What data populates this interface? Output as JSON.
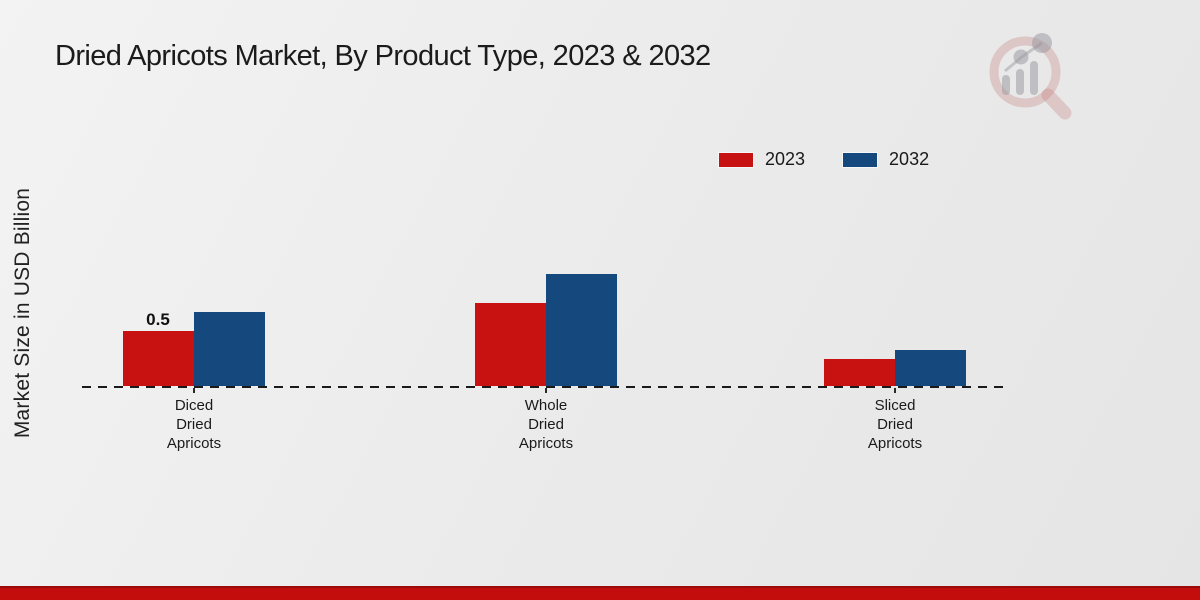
{
  "title": "Dried Apricots Market, By Product Type, 2023 & 2032",
  "chart_data": {
    "type": "bar",
    "title": "Dried Apricots Market, By Product Type, 2023 & 2032",
    "categories": [
      "Diced Dried Apricots",
      "Whole Dried Apricots",
      "Sliced Dried Apricots"
    ],
    "category_labels": [
      "Diced\nDried\nApricots",
      "Whole\nDried\nApricots",
      "Sliced\nDried\nApricots"
    ],
    "series": [
      {
        "name": "2023",
        "color": "#c81111",
        "values": [
          0.5,
          0.75,
          0.24
        ]
      },
      {
        "name": "2032",
        "color": "#15487d",
        "values": [
          0.67,
          1.01,
          0.33
        ]
      }
    ],
    "xlabel": "",
    "ylabel": "Market Size in USD Billion",
    "ylim": [
      0,
      1.2
    ],
    "grid": false,
    "baseline_style": "dashed",
    "legend_position": "top-right",
    "annotations": [
      {
        "category": "Diced Dried Apricots",
        "series": "2023",
        "text": "0.5"
      }
    ]
  },
  "legend": {
    "items": [
      {
        "label": "2023",
        "color": "#c81111"
      },
      {
        "label": "2032",
        "color": "#15487d"
      }
    ]
  },
  "colors": {
    "bar_2023": "#c81111",
    "bar_2032": "#15487d",
    "footer_main": "#c30c0c",
    "footer_edge": "#9a0b0b",
    "background": "#ebebeb",
    "text": "#1b1b1b"
  },
  "watermark": {
    "name": "market-research-magnifier-logo"
  }
}
